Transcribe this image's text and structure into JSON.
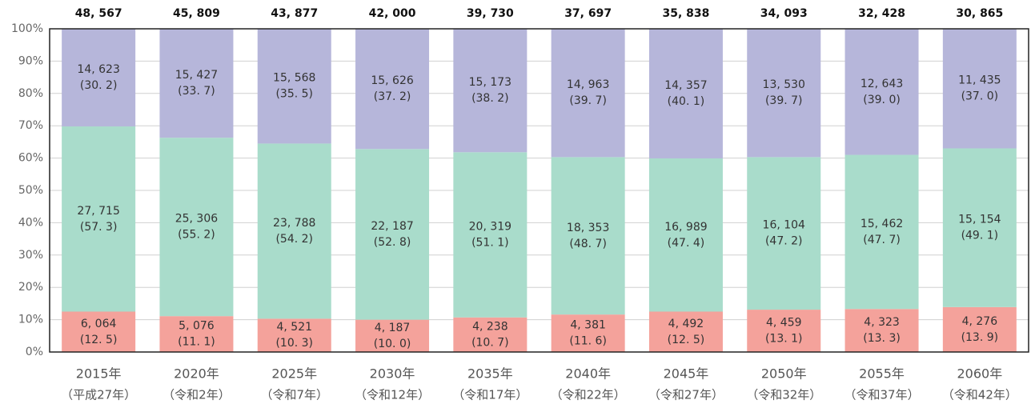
{
  "chart_data": {
    "type": "stacked_bar_100",
    "categories": [
      "2015年",
      "2020年",
      "2025年",
      "2030年",
      "2035年",
      "2040年",
      "2045年",
      "2050年",
      "2055年",
      "2060年"
    ],
    "era_labels": [
      "（平成27年）",
      "（令和2年）",
      "（令和7年）",
      "（令和12年）",
      "（令和17年）",
      "（令和22年）",
      "（令和27年）",
      "（令和32年）",
      "（令和37年）",
      "（令和42年）"
    ],
    "total_labels": [
      "48, 567",
      "45, 809",
      "43, 877",
      "42, 000",
      "39, 730",
      "37, 697",
      "35, 838",
      "34, 093",
      "32, 428",
      "30, 865"
    ],
    "series": [
      {
        "color": "#f4a29b",
        "values": [
          12.5,
          11.1,
          10.3,
          10.0,
          10.7,
          11.6,
          12.5,
          13.1,
          13.3,
          13.9
        ],
        "count_labels": [
          "6, 064",
          "5, 076",
          "4, 521",
          "4, 187",
          "4, 238",
          "4, 381",
          "4, 492",
          "4, 459",
          "4, 323",
          "4, 276"
        ],
        "value_labels": [
          "(12. 5)",
          "(11. 1)",
          "(10. 3)",
          "(10. 0)",
          "(10. 7)",
          "(11. 6)",
          "(12. 5)",
          "(13. 1)",
          "(13. 3)",
          "(13. 9)"
        ]
      },
      {
        "color": "#a9dccb",
        "values": [
          57.3,
          55.2,
          54.2,
          52.8,
          51.1,
          48.7,
          47.4,
          47.2,
          47.7,
          49.1
        ],
        "count_labels": [
          "27, 715",
          "25, 306",
          "23, 788",
          "22, 187",
          "20, 319",
          "18, 353",
          "16, 989",
          "16, 104",
          "15, 462",
          "15, 154"
        ],
        "value_labels": [
          "(57. 3)",
          "(55. 2)",
          "(54. 2)",
          "(52. 8)",
          "(51. 1)",
          "(48. 7)",
          "(47. 4)",
          "(47. 2)",
          "(47. 7)",
          "(49. 1)"
        ]
      },
      {
        "color": "#b6b6da",
        "values": [
          30.2,
          33.7,
          35.5,
          37.2,
          38.2,
          39.7,
          40.1,
          39.7,
          39.0,
          37.0
        ],
        "count_labels": [
          "14, 623",
          "15, 427",
          "15, 568",
          "15, 626",
          "15, 173",
          "14, 963",
          "14, 357",
          "13, 530",
          "12, 643",
          "11, 435"
        ],
        "value_labels": [
          "(30. 2)",
          "(33. 7)",
          "(35. 5)",
          "(37. 2)",
          "(38. 2)",
          "(39. 7)",
          "(40. 1)",
          "(39. 7)",
          "(39. 0)",
          "(37. 0)"
        ]
      }
    ],
    "ylim": [
      0,
      100
    ],
    "yticks": [
      {
        "value": 0,
        "label": "0%"
      },
      {
        "value": 10,
        "label": "10%"
      },
      {
        "value": 20,
        "label": "20%"
      },
      {
        "value": 30,
        "label": "30%"
      },
      {
        "value": 40,
        "label": "40%"
      },
      {
        "value": 50,
        "label": "50%"
      },
      {
        "value": 60,
        "label": "60%"
      },
      {
        "value": 70,
        "label": "70%"
      },
      {
        "value": 80,
        "label": "80%"
      },
      {
        "value": 90,
        "label": "90%"
      },
      {
        "value": 100,
        "label": "100%"
      }
    ],
    "grid": true
  }
}
